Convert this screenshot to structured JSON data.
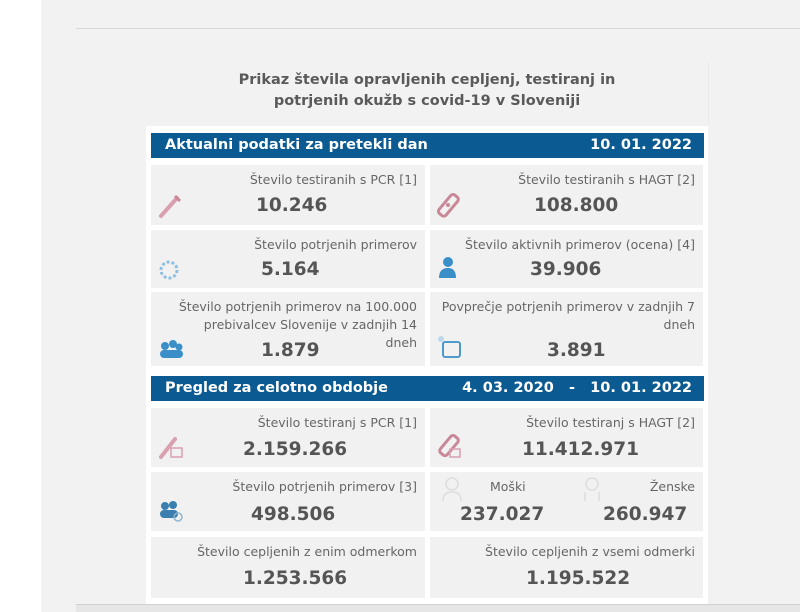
{
  "title_line1": "Prikaz števila opravljenih cepljenj, testiranj in",
  "title_line2": "potrjenih okužb s covid-19 v Sloveniji",
  "daily": {
    "heading": "Aktualni podatki za pretekli dan",
    "date": "10. 01. 2022",
    "pcr": {
      "label": "Število testiranih s PCR [1]",
      "value": "10.246"
    },
    "hagt": {
      "label": "Število testiranih s HAGT [2]",
      "value": "108.800"
    },
    "confirmed": {
      "label": "Število potrjenih primerov",
      "value": "5.164"
    },
    "active": {
      "label": "Število aktivnih primerov (ocena) [4]",
      "value": "39.906"
    },
    "per100k": {
      "label": "Število potrjenih primerov na 100.000 prebivalcev Slovenije v zadnjih 14 dneh",
      "value": "1.879"
    },
    "avg7": {
      "label": "Povprečje potrjenih primerov v zadnjih 7 dneh",
      "value": "3.891"
    }
  },
  "total": {
    "heading": "Pregled za celotno obdobje",
    "date_from": "4. 03. 2020",
    "sep": "-",
    "date_to": "10. 01. 2022",
    "pcr": {
      "label": "Število testiranj s PCR [1]",
      "value": "2.159.266"
    },
    "hagt": {
      "label": "Število testiranj s HAGT [2]",
      "value": "11.412.971"
    },
    "confirmed": {
      "label": "Število potrjenih primerov [3]",
      "value": "498.506"
    },
    "men": {
      "label": "Moški",
      "value": "237.027"
    },
    "women": {
      "label": "Ženske",
      "value": "260.947"
    },
    "vacc_one": {
      "label": "Število cepljenih z enim odmerkom",
      "value": "1.253.566"
    },
    "vacc_all": {
      "label": "Število cepljenih z vsemi odmerki",
      "value": "1.195.522"
    }
  },
  "colors": {
    "header": "#0b5a92",
    "pink": "#d9a0b0",
    "blue": "#3a8fc9"
  }
}
